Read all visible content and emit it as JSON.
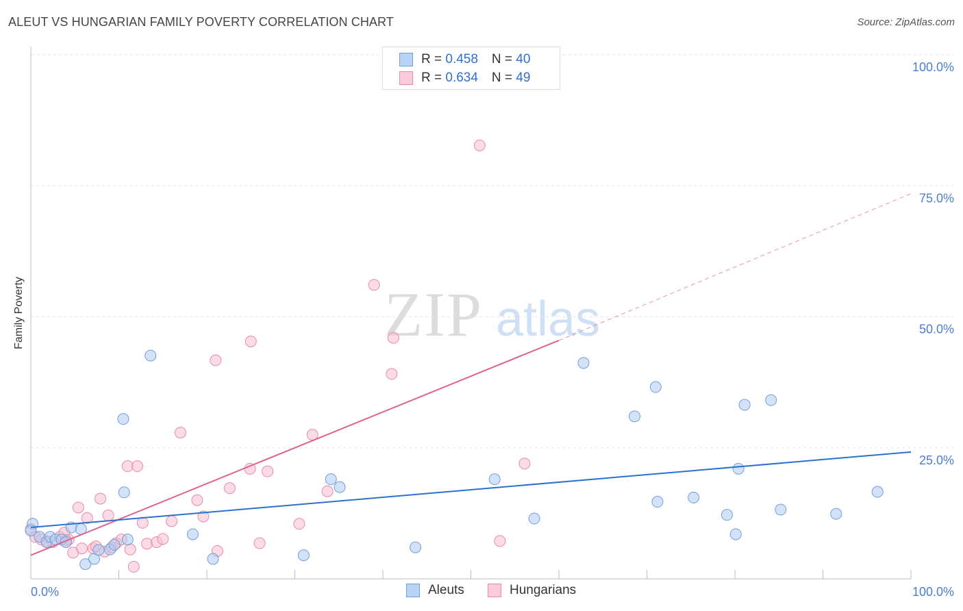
{
  "title": "ALEUT VS HUNGARIAN FAMILY POVERTY CORRELATION CHART",
  "source": "Source: ZipAtlas.com",
  "watermark": {
    "zip": "ZIP",
    "atlas": "atlas"
  },
  "legend": {
    "rows": [
      {
        "r_label": "R = ",
        "r_value": "0.458",
        "n_label": "N = ",
        "n_value": "40"
      },
      {
        "r_label": "R = ",
        "r_value": "0.634",
        "n_label": "N = ",
        "n_value": "49"
      }
    ]
  },
  "bottom_legend": {
    "aleuts": "Aleuts",
    "hungarians": "Hungarians"
  },
  "colors": {
    "aleut_fill": "#aecbf2",
    "aleut_stroke": "#6f9fd8",
    "aleut_line": "#2b6fcf",
    "hung_fill": "#f8c0d0",
    "hung_stroke": "#e88aa8",
    "hung_line": "#e0618d",
    "axis_text": "#4a7fd0",
    "grid": "#e3e3e3"
  },
  "chart_data": {
    "type": "scatter",
    "title": "ALEUT VS HUNGARIAN FAMILY POVERTY CORRELATION CHART",
    "xlabel": "",
    "ylabel": "Family Poverty",
    "xlim": [
      0,
      100
    ],
    "ylim": [
      0,
      100
    ],
    "x_tick_labels": [
      "0.0%",
      "100.0%"
    ],
    "y_ticks": [
      25,
      50,
      75,
      100
    ],
    "y_tick_labels": [
      "25.0%",
      "50.0%",
      "75.0%",
      "100.0%"
    ],
    "series": [
      {
        "name": "Aleuts",
        "r": 0.458,
        "n": 40,
        "trend": {
          "x0": 0,
          "y0": 9.8,
          "x1": 100,
          "y1": 24.2
        },
        "points": [
          [
            0.2,
            10.5
          ],
          [
            1.0,
            8.0
          ],
          [
            1.8,
            7.0
          ],
          [
            2.2,
            8.0
          ],
          [
            2.8,
            7.5
          ],
          [
            3.5,
            7.5
          ],
          [
            4.0,
            7.0
          ],
          [
            4.6,
            9.8
          ],
          [
            5.7,
            9.5
          ],
          [
            6.2,
            2.8
          ],
          [
            7.2,
            3.8
          ],
          [
            7.7,
            5.5
          ],
          [
            9.0,
            5.6
          ],
          [
            9.5,
            6.5
          ],
          [
            10.5,
            30.5
          ],
          [
            10.6,
            16.5
          ],
          [
            11.0,
            7.5
          ],
          [
            13.6,
            42.6
          ],
          [
            18.4,
            8.5
          ],
          [
            20.7,
            3.8
          ],
          [
            31.0,
            4.5
          ],
          [
            34.1,
            19.0
          ],
          [
            35.1,
            17.5
          ],
          [
            43.7,
            6.0
          ],
          [
            52.7,
            19.0
          ],
          [
            57.2,
            11.5
          ],
          [
            62.8,
            41.2
          ],
          [
            68.6,
            31.0
          ],
          [
            71.0,
            36.6
          ],
          [
            71.2,
            14.7
          ],
          [
            75.3,
            15.5
          ],
          [
            79.1,
            12.2
          ],
          [
            80.1,
            8.5
          ],
          [
            80.4,
            21.0
          ],
          [
            81.1,
            33.2
          ],
          [
            84.1,
            34.1
          ],
          [
            85.2,
            13.2
          ],
          [
            91.5,
            12.4
          ],
          [
            96.2,
            16.6
          ],
          [
            0.0,
            9.2
          ]
        ]
      },
      {
        "name": "Hungarians",
        "r": 0.634,
        "n": 49,
        "trend": {
          "x0": 0,
          "y0": 4.5,
          "x1": 60,
          "y1": 45.5,
          "dash_x1": 100,
          "dash_y1": 73.5
        },
        "points": [
          [
            0.0,
            9.5
          ],
          [
            0.5,
            8.0
          ],
          [
            1.2,
            7.5
          ],
          [
            1.8,
            7.2
          ],
          [
            2.5,
            7.0
          ],
          [
            3.3,
            8.0
          ],
          [
            3.8,
            8.8
          ],
          [
            4.3,
            7.5
          ],
          [
            4.8,
            5.0
          ],
          [
            5.4,
            13.6
          ],
          [
            5.8,
            5.8
          ],
          [
            6.4,
            11.6
          ],
          [
            7.1,
            5.8
          ],
          [
            7.4,
            6.2
          ],
          [
            7.9,
            15.3
          ],
          [
            8.4,
            5.2
          ],
          [
            8.8,
            12.1
          ],
          [
            9.7,
            6.8
          ],
          [
            10.3,
            7.5
          ],
          [
            11.0,
            21.5
          ],
          [
            11.3,
            5.6
          ],
          [
            11.7,
            2.3
          ],
          [
            12.1,
            21.5
          ],
          [
            12.7,
            10.7
          ],
          [
            13.2,
            6.7
          ],
          [
            14.3,
            7.0
          ],
          [
            15.0,
            7.6
          ],
          [
            16.0,
            11.0
          ],
          [
            17.0,
            27.9
          ],
          [
            18.9,
            15.0
          ],
          [
            19.6,
            11.9
          ],
          [
            21.0,
            41.7
          ],
          [
            21.2,
            5.3
          ],
          [
            22.6,
            17.3
          ],
          [
            24.9,
            21.0
          ],
          [
            25.0,
            45.3
          ],
          [
            26.0,
            6.8
          ],
          [
            26.9,
            20.5
          ],
          [
            30.5,
            10.5
          ],
          [
            32.0,
            27.5
          ],
          [
            33.7,
            16.7
          ],
          [
            39.0,
            56.1
          ],
          [
            41.0,
            39.1
          ],
          [
            41.2,
            46.0
          ],
          [
            51.0,
            82.7
          ],
          [
            53.3,
            7.2
          ],
          [
            56.1,
            22.0
          ],
          [
            4.0,
            7.3
          ],
          [
            9.2,
            6.0
          ]
        ]
      }
    ]
  }
}
